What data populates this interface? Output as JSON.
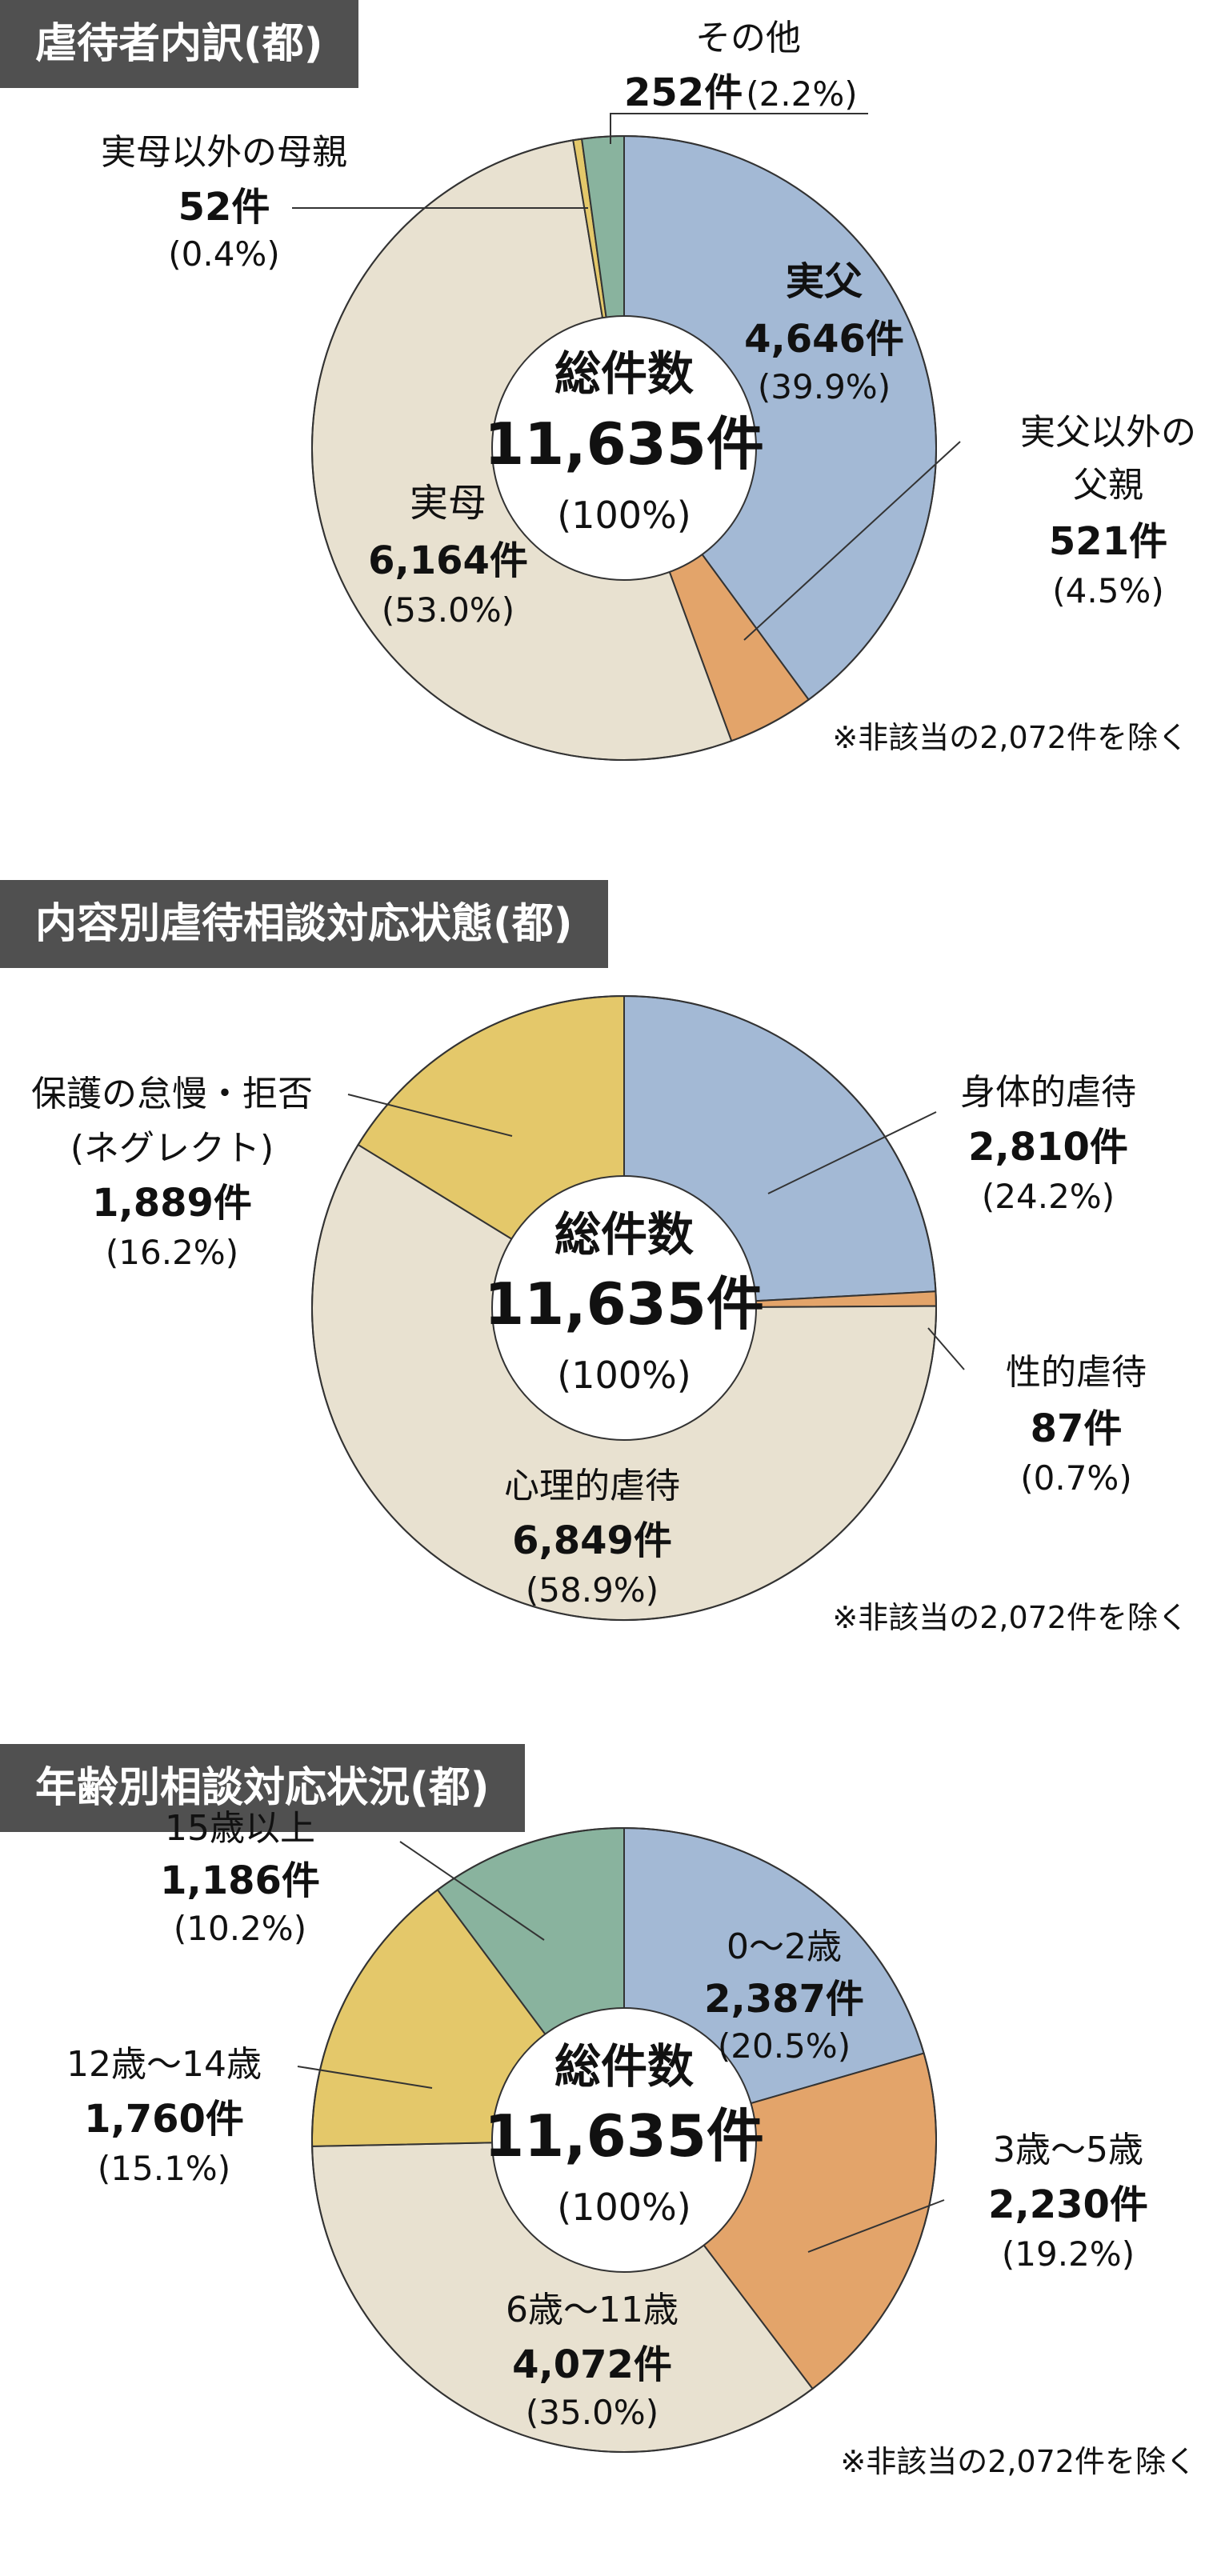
{
  "colors": {
    "blue": "#a3b9d5",
    "orange": "#e3a46a",
    "beige": "#e8e1d0",
    "yellow": "#e4c86a",
    "green": "#89b39e",
    "header_bg": "#505050"
  },
  "chart_data": [
    {
      "type": "pie",
      "title": "虐待者内訳(都)",
      "center": {
        "label": "総件数",
        "total": "11,635件",
        "percent": "(100%)"
      },
      "note": "※非該当の2,072件を除く",
      "slices": [
        {
          "name": "実父",
          "value": 4646,
          "count": "4,646件",
          "percent": "(39.9%)",
          "color": "blue"
        },
        {
          "name": "実父以外の父親",
          "value": 521,
          "count": "521件",
          "percent": "(4.5%)",
          "color": "orange"
        },
        {
          "name": "実母",
          "value": 6164,
          "count": "6,164件",
          "percent": "(53.0%)",
          "color": "beige"
        },
        {
          "name": "実母以外の母親",
          "value": 52,
          "count": "52件",
          "percent": "(0.4%)",
          "color": "yellow"
        },
        {
          "name": "その他",
          "value": 252,
          "count": "252件",
          "percent": "(2.2%)",
          "color": "green"
        }
      ]
    },
    {
      "type": "pie",
      "title": "内容別虐待相談対応状態(都)",
      "center": {
        "label": "総件数",
        "total": "11,635件",
        "percent": "(100%)"
      },
      "note": "※非該当の2,072件を除く",
      "slices": [
        {
          "name": "身体的虐待",
          "value": 2810,
          "count": "2,810件",
          "percent": "(24.2%)",
          "color": "blue"
        },
        {
          "name": "性的虐待",
          "value": 87,
          "count": "87件",
          "percent": "(0.7%)",
          "color": "orange"
        },
        {
          "name": "心理的虐待",
          "value": 6849,
          "count": "6,849件",
          "percent": "(58.9%)",
          "color": "beige"
        },
        {
          "name": "保護の怠慢・拒否(ネグレクト)",
          "value": 1889,
          "count": "1,889件",
          "percent": "(16.2%)",
          "color": "yellow"
        }
      ]
    },
    {
      "type": "pie",
      "title": "年齢別相談対応状況(都)",
      "center": {
        "label": "総件数",
        "total": "11,635件",
        "percent": "(100%)"
      },
      "note": "※非該当の2,072件を除く",
      "slices": [
        {
          "name": "0〜2歳",
          "value": 2387,
          "count": "2,387件",
          "percent": "(20.5%)",
          "color": "blue"
        },
        {
          "name": "3歳〜5歳",
          "value": 2230,
          "count": "2,230件",
          "percent": "(19.2%)",
          "color": "orange"
        },
        {
          "name": "6歳〜11歳",
          "value": 4072,
          "count": "4,072件",
          "percent": "(35.0%)",
          "color": "beige"
        },
        {
          "name": "12歳〜14歳",
          "value": 1760,
          "count": "1,760件",
          "percent": "(15.1%)",
          "color": "yellow"
        },
        {
          "name": "15歳以上",
          "value": 1186,
          "count": "1,186件",
          "percent": "(10.2%)",
          "color": "green"
        }
      ]
    }
  ]
}
